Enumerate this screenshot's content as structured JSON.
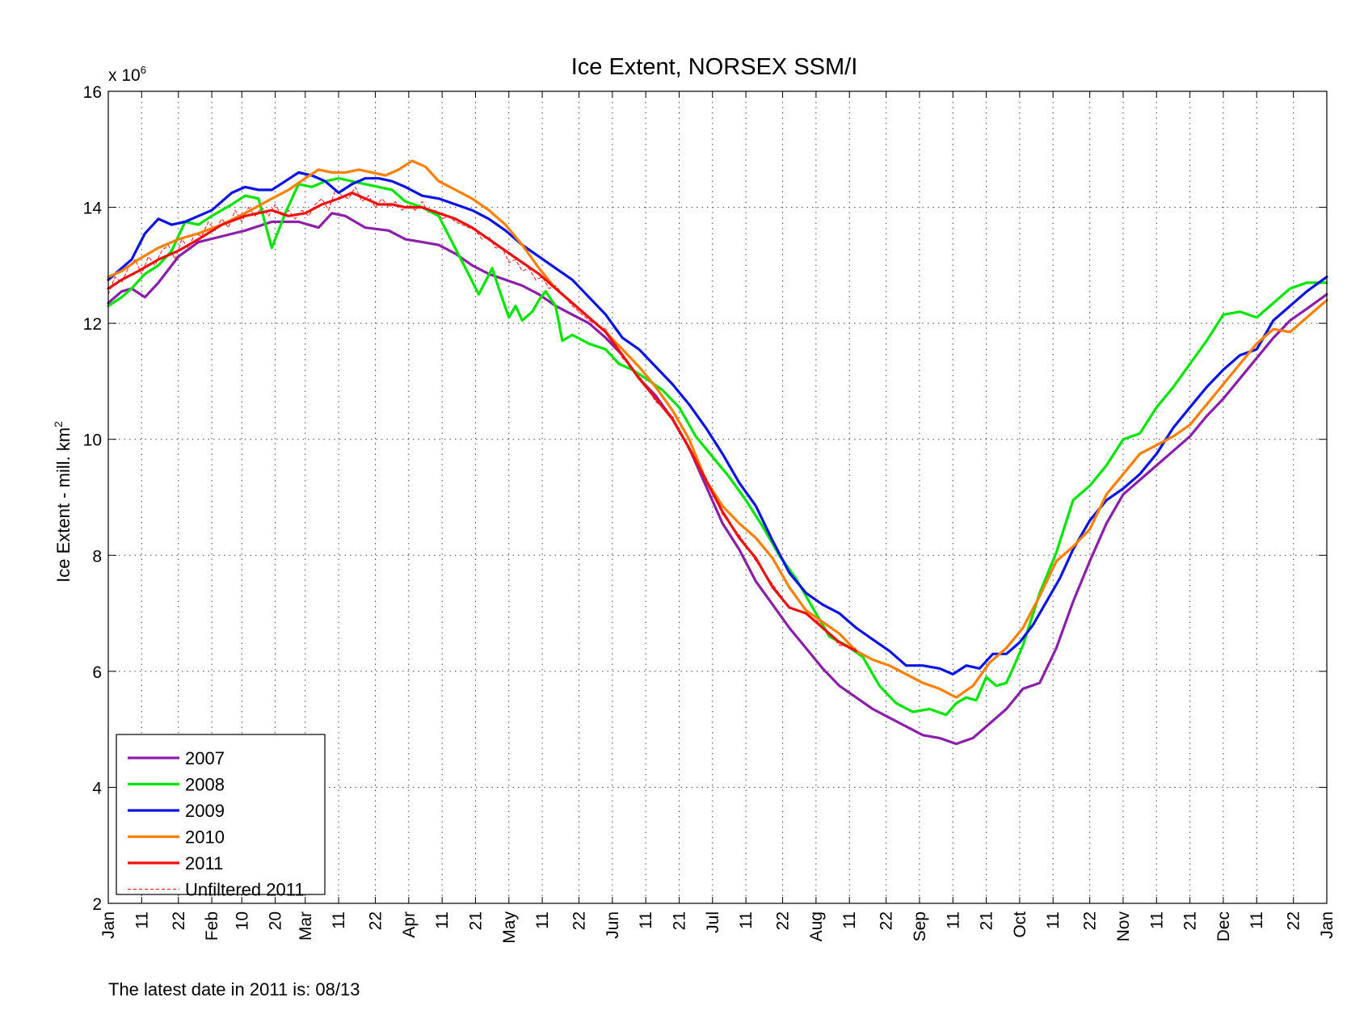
{
  "chart_data": {
    "type": "line",
    "title": "Ice Extent, NORSEX SSM/I",
    "ylabel": "Ice Extent - mill. km",
    "ylabel_superscript": "2",
    "y_multiplier_label": "x 10",
    "y_multiplier_exponent": "6",
    "ylim": [
      2,
      16
    ],
    "xlim": [
      1,
      366
    ],
    "y_ticks": [
      2,
      4,
      6,
      8,
      10,
      12,
      14,
      16
    ],
    "y_tick_labels": [
      "2",
      "4",
      "6",
      "8",
      "10",
      "12",
      "14",
      "16"
    ],
    "x_ticks": [
      {
        "day": 1,
        "label": "Jan"
      },
      {
        "day": 11,
        "label": "11"
      },
      {
        "day": 22,
        "label": "22"
      },
      {
        "day": 32,
        "label": "Feb"
      },
      {
        "day": 41,
        "label": "10"
      },
      {
        "day": 51,
        "label": "20"
      },
      {
        "day": 60,
        "label": "Mar"
      },
      {
        "day": 70,
        "label": "11"
      },
      {
        "day": 81,
        "label": "22"
      },
      {
        "day": 91,
        "label": "Apr"
      },
      {
        "day": 101,
        "label": "11"
      },
      {
        "day": 111,
        "label": "21"
      },
      {
        "day": 121,
        "label": "May"
      },
      {
        "day": 131,
        "label": "11"
      },
      {
        "day": 142,
        "label": "22"
      },
      {
        "day": 152,
        "label": "Jun"
      },
      {
        "day": 162,
        "label": "11"
      },
      {
        "day": 172,
        "label": "21"
      },
      {
        "day": 182,
        "label": "Jul"
      },
      {
        "day": 192,
        "label": "11"
      },
      {
        "day": 203,
        "label": "22"
      },
      {
        "day": 213,
        "label": "Aug"
      },
      {
        "day": 223,
        "label": "11"
      },
      {
        "day": 234,
        "label": "22"
      },
      {
        "day": 244,
        "label": "Sep"
      },
      {
        "day": 254,
        "label": "11"
      },
      {
        "day": 264,
        "label": "21"
      },
      {
        "day": 274,
        "label": "Oct"
      },
      {
        "day": 284,
        "label": "11"
      },
      {
        "day": 295,
        "label": "22"
      },
      {
        "day": 305,
        "label": "Nov"
      },
      {
        "day": 315,
        "label": "11"
      },
      {
        "day": 325,
        "label": "21"
      },
      {
        "day": 335,
        "label": "Dec"
      },
      {
        "day": 345,
        "label": "11"
      },
      {
        "day": 356,
        "label": "22"
      },
      {
        "day": 366,
        "label": "Jan"
      }
    ],
    "grid": true,
    "legend_position": "bottom-left",
    "series": [
      {
        "name": "2007",
        "color": "#8b1fa9",
        "style": "solid",
        "x": [
          1,
          5,
          8,
          12,
          16,
          22,
          28,
          35,
          42,
          50,
          58,
          64,
          68,
          72,
          78,
          85,
          90,
          95,
          100,
          105,
          110,
          115,
          120,
          125,
          130,
          135,
          140,
          145,
          150,
          155,
          160,
          165,
          170,
          175,
          180,
          185,
          190,
          195,
          200,
          205,
          210,
          215,
          220,
          225,
          230,
          235,
          240,
          245,
          250,
          255,
          260,
          265,
          270,
          275,
          280,
          285,
          290,
          295,
          300,
          305,
          310,
          315,
          320,
          325,
          330,
          335,
          340,
          345,
          350,
          355,
          360,
          366
        ],
        "y": [
          12.35,
          12.55,
          12.6,
          12.45,
          12.7,
          13.15,
          13.4,
          13.5,
          13.6,
          13.75,
          13.75,
          13.65,
          13.9,
          13.85,
          13.65,
          13.6,
          13.45,
          13.4,
          13.35,
          13.2,
          13.0,
          12.85,
          12.75,
          12.65,
          12.5,
          12.3,
          12.15,
          12.0,
          11.75,
          11.45,
          11.05,
          10.75,
          10.35,
          9.85,
          9.2,
          8.55,
          8.1,
          7.55,
          7.15,
          6.75,
          6.4,
          6.05,
          5.75,
          5.55,
          5.35,
          5.2,
          5.05,
          4.9,
          4.85,
          4.75,
          4.85,
          5.1,
          5.35,
          5.7,
          5.8,
          6.4,
          7.2,
          7.9,
          8.55,
          9.05,
          9.3,
          9.55,
          9.8,
          10.05,
          10.4,
          10.7,
          11.05,
          11.4,
          11.75,
          12.05,
          12.25,
          12.5
        ]
      },
      {
        "name": "2008",
        "color": "#00e600",
        "style": "solid",
        "x": [
          1,
          5,
          8,
          12,
          16,
          20,
          24,
          28,
          32,
          38,
          42,
          46,
          50,
          54,
          58,
          62,
          66,
          70,
          74,
          78,
          82,
          86,
          90,
          95,
          100,
          104,
          108,
          112,
          116,
          118,
          121,
          123,
          125,
          128,
          130,
          132,
          135,
          137,
          140,
          145,
          150,
          154,
          158,
          162,
          167,
          172,
          177,
          182,
          187,
          192,
          197,
          202,
          207,
          212,
          217,
          222,
          227,
          232,
          237,
          242,
          247,
          252,
          255,
          258,
          261,
          264,
          267,
          270,
          272,
          275,
          280,
          285,
          290,
          295,
          300,
          305,
          310,
          315,
          320,
          325,
          330,
          335,
          340,
          345,
          350,
          355,
          360,
          366
        ],
        "y": [
          12.3,
          12.45,
          12.6,
          12.85,
          13.0,
          13.25,
          13.75,
          13.7,
          13.85,
          14.05,
          14.2,
          14.15,
          13.3,
          13.9,
          14.4,
          14.35,
          14.45,
          14.5,
          14.45,
          14.4,
          14.35,
          14.3,
          14.1,
          14.0,
          13.85,
          13.4,
          12.95,
          12.5,
          12.95,
          12.6,
          12.1,
          12.3,
          12.05,
          12.2,
          12.4,
          12.55,
          12.3,
          11.7,
          11.8,
          11.65,
          11.55,
          11.3,
          11.2,
          11.05,
          10.85,
          10.55,
          10.05,
          9.7,
          9.35,
          8.95,
          8.5,
          8.0,
          7.6,
          7.1,
          6.6,
          6.45,
          6.25,
          5.75,
          5.45,
          5.3,
          5.35,
          5.25,
          5.45,
          5.55,
          5.5,
          5.9,
          5.75,
          5.8,
          6.05,
          6.45,
          7.35,
          8.05,
          8.95,
          9.2,
          9.55,
          10.0,
          10.1,
          10.55,
          10.9,
          11.3,
          11.7,
          12.15,
          12.2,
          12.1,
          12.35,
          12.6,
          12.7,
          12.7
        ]
      },
      {
        "name": "2009",
        "color": "#0a14e6",
        "style": "solid",
        "x": [
          1,
          5,
          8,
          12,
          16,
          20,
          24,
          28,
          32,
          38,
          42,
          46,
          50,
          54,
          58,
          62,
          66,
          70,
          74,
          78,
          82,
          86,
          90,
          95,
          100,
          105,
          110,
          115,
          120,
          125,
          130,
          135,
          140,
          145,
          150,
          155,
          160,
          165,
          170,
          175,
          180,
          185,
          190,
          195,
          200,
          205,
          210,
          215,
          220,
          225,
          230,
          235,
          240,
          245,
          250,
          254,
          258,
          262,
          266,
          270,
          274,
          278,
          282,
          286,
          290,
          295,
          300,
          305,
          310,
          315,
          320,
          325,
          330,
          335,
          340,
          345,
          350,
          355,
          360,
          366
        ],
        "y": [
          12.75,
          12.95,
          13.1,
          13.55,
          13.8,
          13.7,
          13.75,
          13.85,
          13.95,
          14.25,
          14.35,
          14.3,
          14.3,
          14.45,
          14.6,
          14.55,
          14.45,
          14.25,
          14.4,
          14.5,
          14.5,
          14.45,
          14.35,
          14.2,
          14.15,
          14.05,
          13.95,
          13.8,
          13.6,
          13.35,
          13.15,
          12.95,
          12.75,
          12.45,
          12.15,
          11.75,
          11.55,
          11.25,
          10.95,
          10.6,
          10.2,
          9.75,
          9.25,
          8.85,
          8.25,
          7.7,
          7.35,
          7.15,
          7.0,
          6.75,
          6.55,
          6.35,
          6.1,
          6.1,
          6.05,
          5.95,
          6.1,
          6.05,
          6.3,
          6.3,
          6.5,
          6.8,
          7.2,
          7.6,
          8.1,
          8.6,
          8.95,
          9.15,
          9.4,
          9.75,
          10.2,
          10.55,
          10.9,
          11.2,
          11.45,
          11.55,
          12.05,
          12.3,
          12.55,
          12.8
        ]
      },
      {
        "name": "2010",
        "color": "#ff7f00",
        "style": "solid",
        "x": [
          1,
          5,
          10,
          16,
          22,
          28,
          35,
          42,
          50,
          55,
          60,
          64,
          68,
          72,
          76,
          80,
          84,
          88,
          92,
          96,
          100,
          105,
          110,
          115,
          120,
          125,
          130,
          135,
          140,
          145,
          150,
          155,
          160,
          165,
          170,
          175,
          180,
          185,
          190,
          195,
          200,
          205,
          210,
          215,
          220,
          225,
          230,
          235,
          240,
          245,
          250,
          255,
          260,
          265,
          270,
          275,
          280,
          285,
          290,
          295,
          300,
          305,
          310,
          315,
          320,
          325,
          330,
          335,
          340,
          345,
          350,
          355,
          360,
          366
        ],
        "y": [
          12.8,
          12.9,
          13.1,
          13.3,
          13.45,
          13.55,
          13.7,
          13.9,
          14.15,
          14.3,
          14.5,
          14.65,
          14.6,
          14.6,
          14.65,
          14.6,
          14.55,
          14.65,
          14.8,
          14.7,
          14.45,
          14.3,
          14.15,
          13.95,
          13.7,
          13.35,
          12.95,
          12.6,
          12.35,
          12.1,
          11.85,
          11.55,
          11.25,
          10.9,
          10.5,
          10.0,
          9.3,
          8.85,
          8.55,
          8.3,
          7.95,
          7.45,
          7.05,
          6.85,
          6.65,
          6.35,
          6.2,
          6.1,
          5.95,
          5.8,
          5.7,
          5.55,
          5.75,
          6.15,
          6.4,
          6.75,
          7.3,
          7.9,
          8.15,
          8.45,
          9.05,
          9.4,
          9.75,
          9.9,
          10.05,
          10.25,
          10.6,
          10.95,
          11.3,
          11.65,
          11.9,
          11.85,
          12.1,
          12.4
        ]
      },
      {
        "name": "2011",
        "color": "#f01010",
        "style": "solid",
        "x": [
          1,
          5,
          10,
          16,
          22,
          28,
          35,
          42,
          50,
          55,
          60,
          65,
          70,
          74,
          78,
          82,
          86,
          90,
          95,
          100,
          105,
          110,
          115,
          120,
          125,
          130,
          135,
          140,
          145,
          150,
          155,
          160,
          165,
          170,
          175,
          180,
          185,
          190,
          195,
          200,
          205,
          210,
          215,
          220,
          225
        ],
        "y": [
          12.6,
          12.75,
          12.9,
          13.1,
          13.25,
          13.45,
          13.7,
          13.85,
          13.95,
          13.85,
          13.9,
          14.05,
          14.15,
          14.25,
          14.15,
          14.05,
          14.05,
          14.0,
          14.0,
          13.9,
          13.8,
          13.65,
          13.45,
          13.25,
          13.05,
          12.85,
          12.6,
          12.35,
          12.1,
          11.85,
          11.45,
          11.05,
          10.7,
          10.35,
          9.85,
          9.3,
          8.75,
          8.3,
          7.95,
          7.45,
          7.1,
          7.0,
          6.75,
          6.5,
          6.35
        ]
      },
      {
        "name": "Unfiltered 2011",
        "color": "#f01010",
        "style": "dashed",
        "x": [
          1,
          3,
          5,
          7,
          9,
          11,
          13,
          15,
          17,
          19,
          21,
          23,
          25,
          27,
          29,
          31,
          33,
          35,
          37,
          39,
          41,
          43,
          45,
          47,
          49,
          51,
          53,
          55,
          57,
          59,
          61,
          63,
          65,
          67,
          69,
          71,
          73,
          75,
          77,
          79,
          81,
          83,
          85,
          87,
          89,
          91,
          93,
          95,
          97,
          99,
          101,
          103,
          105,
          107,
          109,
          111,
          113,
          115,
          117,
          119,
          121,
          123,
          125,
          127,
          129,
          131,
          133,
          135,
          140,
          145,
          150,
          155,
          160,
          165,
          170,
          175,
          180,
          185,
          190,
          195,
          200,
          205,
          210,
          215,
          220,
          225
        ],
        "y": [
          12.5,
          12.8,
          12.7,
          12.95,
          13.1,
          12.85,
          13.15,
          13.0,
          13.25,
          13.35,
          13.1,
          13.45,
          13.3,
          13.55,
          13.5,
          13.75,
          13.6,
          13.8,
          13.65,
          13.95,
          13.75,
          14.0,
          13.85,
          14.0,
          13.85,
          14.05,
          13.85,
          13.95,
          13.8,
          13.95,
          13.85,
          14.05,
          14.15,
          13.95,
          14.3,
          14.2,
          14.15,
          14.35,
          14.1,
          14.2,
          14.0,
          14.15,
          14.0,
          14.1,
          13.95,
          14.05,
          13.95,
          14.1,
          13.9,
          13.95,
          13.8,
          13.85,
          13.75,
          13.7,
          13.65,
          13.6,
          13.45,
          13.5,
          13.3,
          13.3,
          13.05,
          13.1,
          12.9,
          12.95,
          12.75,
          12.8,
          12.6,
          12.65,
          12.3,
          12.05,
          11.9,
          11.4,
          11.1,
          10.65,
          10.4,
          9.8,
          9.35,
          8.7,
          8.35,
          7.9,
          7.5,
          7.1,
          7.0,
          6.8,
          6.45,
          6.4
        ]
      }
    ]
  },
  "footer_text": "The latest date in 2011 is: 08/13"
}
